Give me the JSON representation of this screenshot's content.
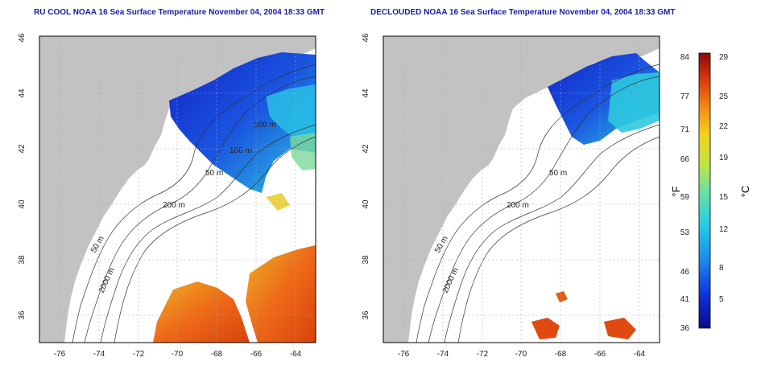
{
  "left_panel": {
    "title": "RU COOL NOAA 16 Sea Surface Temperature November 04, 2004 18:33 GMT",
    "contour_labels": [
      "100 m",
      "100 m",
      "50 m",
      "200 m",
      "50 m",
      "2000 m"
    ]
  },
  "right_panel": {
    "title": "DECLOUDED NOAA 16 Sea Surface Temperature November 04, 2004 18:33 GMT",
    "contour_labels": [
      "50 m",
      "200 m",
      "50 m",
      "2000 m"
    ]
  },
  "axes": {
    "x_ticks": [
      "-76",
      "-74",
      "-72",
      "-70",
      "-68",
      "-66",
      "-64"
    ],
    "y_ticks": [
      "46",
      "44",
      "42",
      "40",
      "38",
      "36"
    ]
  },
  "colorbar": {
    "fahrenheit_label": "°F",
    "celsius_label": "°C",
    "fahrenheit_ticks": [
      "84",
      "77",
      "71",
      "66",
      "59",
      "53",
      "46",
      "41",
      "36"
    ],
    "celsius_ticks": [
      "29",
      "25",
      "22",
      "19",
      "15",
      "12",
      "8",
      "5"
    ]
  },
  "colors": {
    "title": "#1a1aa8",
    "land": "#c2c2c2",
    "contour": "#333333"
  }
}
